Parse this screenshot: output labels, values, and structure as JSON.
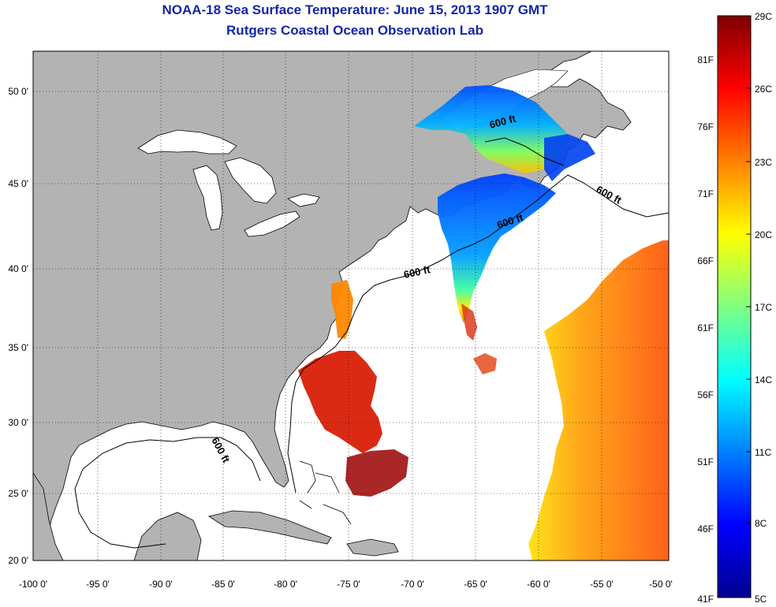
{
  "title": {
    "line1": "NOAA-18 Sea Surface Temperature:  June 15, 2013 1907 GMT",
    "line2": "Rutgers Coastal Ocean Observation Lab"
  },
  "map": {
    "lat_ticks": [
      "50 0'",
      "45 0'",
      "40 0'",
      "35 0'",
      "30 0'",
      "25 0'",
      "20 0'"
    ],
    "lon_ticks": [
      "-100 0'",
      "-95 0'",
      "-90 0'",
      "-85 0'",
      "-80 0'",
      "-75 0'",
      "-70 0'",
      "-65 0'",
      "-60 0'",
      "-55 0'",
      "-50 0'"
    ],
    "contour_labels": [
      "600 ft",
      "600 ft",
      "600 ft",
      "600 ft",
      "600 ft"
    ],
    "land_color": "#b3b3b3",
    "water_color": "#ffffff"
  },
  "colorbar": {
    "celsius_labels": [
      "29C",
      "26C",
      "23C",
      "20C",
      "17C",
      "14C",
      "11C",
      "8C",
      "5C"
    ],
    "fahrenheit_labels": [
      "81F",
      "76F",
      "71F",
      "66F",
      "61F",
      "56F",
      "51F",
      "46F",
      "41F"
    ],
    "colors": [
      "#800000",
      "#ff0000",
      "#ff8000",
      "#ffff00",
      "#80ff80",
      "#00ffff",
      "#0080ff",
      "#0000ff",
      "#00008f"
    ]
  }
}
